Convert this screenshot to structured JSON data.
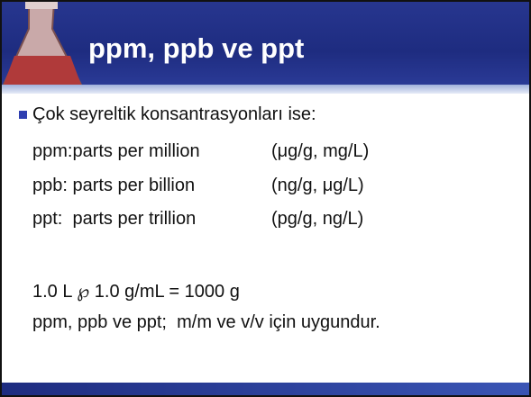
{
  "title": "ppm, ppb ve ppt",
  "bullet": "Çok seyreltik konsantrasyonları ise:",
  "rows": [
    [
      "ppm:parts per million",
      "(μg/g, mg/L)"
    ],
    [
      "ppb: parts per billion",
      "(ng/g, μg/L)"
    ],
    [
      "ppt:  parts per trillion",
      "(pg/g, ng/L)"
    ]
  ],
  "lines": [
    "1.0 L ℘ 1.0 g/mL = 1000 g",
    "ppm, ppb ve ppt;  m/m ve v/v için uygundur."
  ]
}
